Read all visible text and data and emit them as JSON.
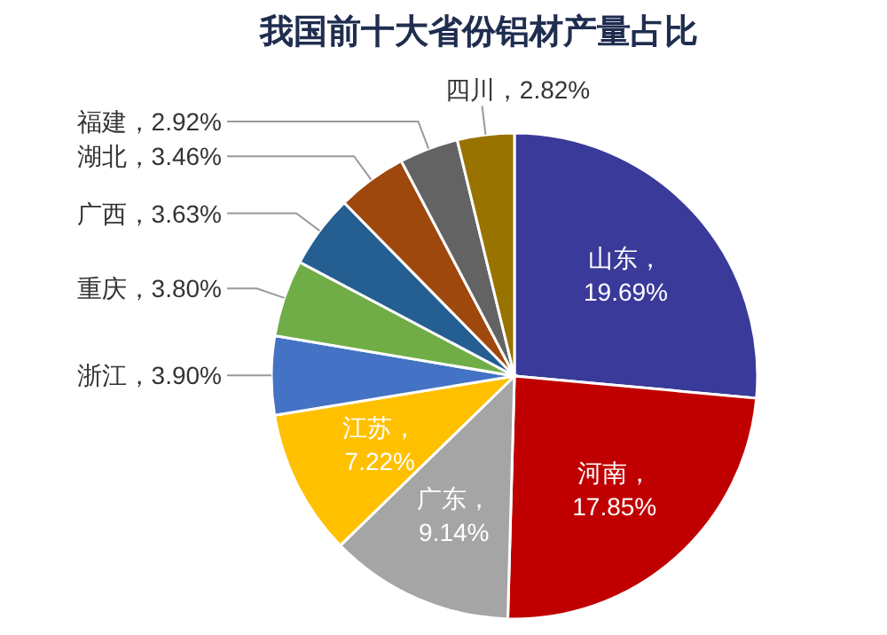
{
  "chart_data": {
    "type": "pie",
    "title": "我国前十大省份铝材产量占比",
    "categories": [
      "山东",
      "河南",
      "广东",
      "江苏",
      "浙江",
      "重庆",
      "广西",
      "湖北",
      "福建",
      "四川"
    ],
    "values": [
      19.69,
      17.85,
      9.14,
      7.22,
      3.9,
      3.8,
      3.63,
      3.46,
      2.92,
      2.82
    ],
    "colors": [
      "#3a3a9a",
      "#c00000",
      "#a5a5a5",
      "#ffc000",
      "#4472c4",
      "#70ad47",
      "#255e91",
      "#9e480e",
      "#636363",
      "#997300"
    ],
    "value_labels": [
      "，19.69%",
      "，17.85%",
      "，9.14%",
      "，7.22%",
      "，3.90%",
      "，3.80%",
      "，3.63%",
      "，3.46%",
      "，2.92%",
      "，2.82%"
    ],
    "legend": false
  }
}
